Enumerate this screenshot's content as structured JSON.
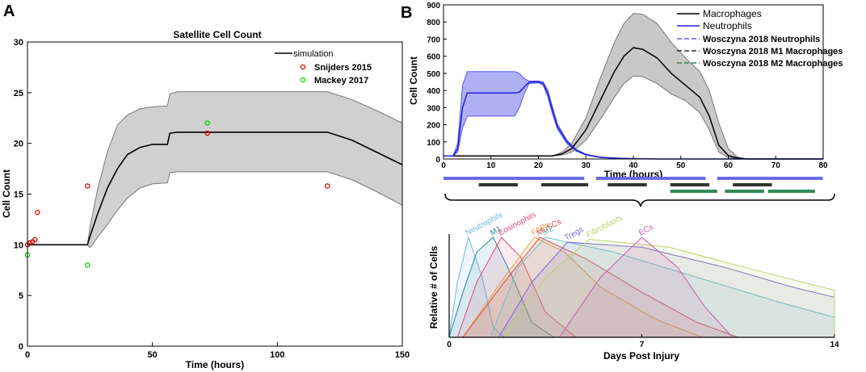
{
  "figure": {
    "panel_a_letter": "A",
    "panel_b_letter": "B"
  },
  "chart_data": [
    {
      "id": "A",
      "type": "line",
      "title": "Satellite Cell Count",
      "xlabel": "Time (hours)",
      "ylabel": "Cell Count",
      "xlim": [
        0,
        150
      ],
      "ylim": [
        0,
        30
      ],
      "xticks": [
        0,
        50,
        100,
        150
      ],
      "yticks": [
        0,
        5,
        10,
        15,
        20,
        25,
        30
      ],
      "series": [
        {
          "name": "simulation",
          "type": "line",
          "color": "#000000",
          "x": [
            0,
            24,
            25,
            28,
            32,
            36,
            40,
            45,
            50,
            56,
            57,
            60,
            70,
            80,
            100,
            120,
            130,
            140,
            150
          ],
          "y": [
            10,
            10,
            10.8,
            13,
            15.6,
            17.5,
            18.9,
            19.6,
            19.9,
            19.9,
            21.0,
            21.1,
            21.1,
            21.1,
            21.1,
            21.1,
            20.3,
            19.1,
            17.9
          ]
        },
        {
          "name": "band_upper",
          "type": "band_upper",
          "x": [
            0,
            24,
            25,
            28,
            32,
            36,
            40,
            45,
            50,
            56,
            57,
            60,
            70,
            80,
            100,
            120,
            130,
            140,
            150
          ],
          "y": [
            10,
            10,
            11.7,
            15.4,
            19.2,
            21.8,
            22.8,
            23.4,
            23.6,
            23.7,
            24.9,
            25.1,
            25.1,
            25.1,
            25.1,
            25.1,
            24.3,
            23.2,
            22.0
          ]
        },
        {
          "name": "band_lower",
          "type": "band_lower",
          "x": [
            0,
            24,
            25,
            28,
            32,
            36,
            40,
            45,
            50,
            56,
            57,
            60,
            70,
            80,
            100,
            120,
            130,
            140,
            150
          ],
          "y": [
            10,
            10,
            9.7,
            10.7,
            12.0,
            13.4,
            14.6,
            15.6,
            16.0,
            16.1,
            17.1,
            17.2,
            17.2,
            17.2,
            17.2,
            17.2,
            16.4,
            15.2,
            13.9
          ]
        },
        {
          "name": "Snijders 2015",
          "type": "scatter",
          "color": "#e00000",
          "x": [
            0,
            1,
            2,
            4,
            3,
            24,
            72,
            120
          ],
          "y": [
            10.0,
            10.2,
            10.3,
            13.2,
            10.5,
            15.8,
            21.0,
            15.8
          ]
        },
        {
          "name": "Mackey 2017",
          "type": "scatter",
          "color": "#00d000",
          "x": [
            0,
            24,
            72
          ],
          "y": [
            9.0,
            8.0,
            22.0
          ]
        }
      ],
      "legend": [
        "simulation",
        "Snijders 2015",
        "Mackey 2017"
      ]
    },
    {
      "id": "B-top",
      "type": "line",
      "xlabel": "Time (hours)",
      "ylabel": "Cell Count",
      "xlim": [
        0,
        80
      ],
      "ylim": [
        0,
        900
      ],
      "xticks": [
        0,
        10,
        20,
        30,
        40,
        50,
        60,
        70,
        80
      ],
      "yticks": [
        0,
        100,
        200,
        300,
        400,
        500,
        600,
        700,
        800,
        900
      ],
      "series": [
        {
          "name": "Macrophages",
          "color": "#000000",
          "x": [
            0,
            23,
            25,
            27,
            30,
            33,
            36,
            38,
            40,
            42,
            45,
            48,
            51,
            54,
            56,
            58,
            60,
            62,
            64,
            80
          ],
          "y": [
            18,
            18,
            30,
            60,
            170,
            340,
            510,
            600,
            650,
            640,
            590,
            500,
            430,
            360,
            250,
            80,
            20,
            5,
            0,
            0
          ]
        },
        {
          "name": "Macrophages_upper",
          "type": "band_upper",
          "x": [
            0,
            23,
            25,
            27,
            30,
            33,
            36,
            38,
            40,
            42,
            45,
            48,
            51,
            54,
            56,
            58,
            60,
            62,
            64,
            80
          ],
          "y": [
            18,
            18,
            40,
            90,
            240,
            470,
            680,
            790,
            850,
            845,
            790,
            680,
            590,
            510,
            400,
            210,
            60,
            10,
            0,
            0
          ]
        },
        {
          "name": "Macrophages_lower",
          "type": "band_lower",
          "x": [
            0,
            23,
            25,
            27,
            30,
            33,
            36,
            38,
            40,
            42,
            45,
            48,
            51,
            54,
            56,
            58,
            60,
            62,
            64,
            80
          ],
          "y": [
            18,
            18,
            22,
            40,
            110,
            230,
            360,
            440,
            485,
            480,
            440,
            380,
            340,
            270,
            170,
            40,
            10,
            2,
            0,
            0
          ]
        },
        {
          "name": "Neutrophils",
          "color": "#2020e0",
          "x": [
            0,
            2,
            3,
            4,
            5,
            6,
            10,
            15,
            16,
            17,
            18,
            20,
            21,
            22,
            23,
            24,
            26,
            28,
            30,
            33,
            36,
            40,
            45,
            80
          ],
          "y": [
            18,
            18,
            60,
            300,
            385,
            385,
            385,
            385,
            390,
            420,
            448,
            450,
            440,
            380,
            280,
            190,
            100,
            50,
            25,
            10,
            5,
            2,
            0,
            0
          ]
        },
        {
          "name": "Neutrophils_upper",
          "type": "band_upper",
          "x": [
            0,
            2,
            3,
            4,
            5,
            6,
            10,
            15,
            16,
            17,
            18,
            20,
            21,
            22,
            23,
            24,
            26,
            28,
            30,
            33,
            36,
            40,
            45,
            80
          ],
          "y": [
            18,
            18,
            90,
            430,
            510,
            510,
            510,
            510,
            500,
            470,
            455,
            455,
            450,
            400,
            300,
            205,
            110,
            55,
            28,
            12,
            6,
            2,
            0,
            0
          ]
        },
        {
          "name": "Neutrophils_lower",
          "type": "band_lower",
          "x": [
            0,
            2,
            3,
            4,
            5,
            6,
            10,
            15,
            16,
            17,
            18,
            20,
            21,
            22,
            23,
            24,
            26,
            28,
            30,
            33,
            36,
            40,
            45,
            80
          ],
          "y": [
            18,
            18,
            40,
            180,
            250,
            250,
            250,
            250,
            300,
            380,
            440,
            445,
            430,
            360,
            260,
            175,
            90,
            45,
            22,
            8,
            4,
            1,
            0,
            0
          ]
        }
      ],
      "legend": [
        {
          "label": "Macrophages",
          "color": "#000000",
          "style": "solid"
        },
        {
          "label": "Neutrophils",
          "color": "#2020e0",
          "style": "solid"
        },
        {
          "label": "Wosczyna 2018 Neutrophils",
          "color": "#5a5ae8",
          "style": "dashed"
        },
        {
          "label": "Wosczyna 2018 M1 Macrophages",
          "color": "#333333",
          "style": "dashed"
        },
        {
          "label": "Wosczyna 2018 M2 Macrophages",
          "color": "#2e8b57",
          "style": "dashed"
        }
      ]
    },
    {
      "id": "B-bottom",
      "type": "area",
      "xlabel": "Days Post Injury",
      "ylabel": "Relative # of Cells",
      "xlim": [
        0,
        14
      ],
      "xticks": [
        0,
        7,
        14
      ],
      "series": [
        {
          "name": "Neutrophils",
          "color": "#6fb7d9",
          "x": [
            0,
            0.3,
            0.7,
            1.2,
            1.6,
            2.0
          ],
          "y": [
            0,
            0.55,
            1.0,
            0.6,
            0.1,
            0
          ]
        },
        {
          "name": "M1",
          "color": "#2a8a9a",
          "x": [
            0,
            0.5,
            1.0,
            1.6,
            2.3,
            3.0,
            3.8
          ],
          "y": [
            0,
            0.45,
            0.85,
            1.0,
            0.6,
            0.15,
            0
          ]
        },
        {
          "name": "Eosinophils",
          "color": "#e24a7a",
          "x": [
            0.3,
            1.0,
            1.9,
            2.6,
            3.5,
            4.6
          ],
          "y": [
            0,
            0.55,
            1.0,
            0.8,
            0.25,
            0
          ]
        },
        {
          "name": "FAPs",
          "color": "#e6a23c",
          "x": [
            0.5,
            2.0,
            3.1,
            4.2,
            5.5,
            7.5,
            9.2
          ],
          "y": [
            0,
            0.6,
            1.0,
            0.85,
            0.5,
            0.18,
            0
          ]
        },
        {
          "name": "MuSCs",
          "color": "#d94a4a",
          "x": [
            0.5,
            2.0,
            3.3,
            5.0,
            7.0,
            9.0,
            10.5
          ],
          "y": [
            0,
            0.55,
            1.0,
            0.78,
            0.45,
            0.15,
            0
          ]
        },
        {
          "name": "M2",
          "color": "#6fc1c9",
          "x": [
            1.5,
            2.5,
            3.5,
            6.0,
            9.0,
            12.0,
            14.0
          ],
          "y": [
            0,
            0.7,
            1.0,
            0.85,
            0.6,
            0.35,
            0.2
          ]
        },
        {
          "name": "Tregs",
          "color": "#7b68c9",
          "x": [
            1.8,
            3.0,
            4.3,
            7.0,
            10.0,
            12.5,
            14.0
          ],
          "y": [
            0,
            0.55,
            0.95,
            0.9,
            0.7,
            0.5,
            0.4
          ]
        },
        {
          "name": "Fibroblasts",
          "color": "#b9d36a",
          "x": [
            2.0,
            3.5,
            5.1,
            8.0,
            11.0,
            14.0
          ],
          "y": [
            0,
            0.6,
            0.98,
            0.9,
            0.68,
            0.47
          ]
        },
        {
          "name": "ECs",
          "color": "#c65aa8",
          "x": [
            4.0,
            5.5,
            7.0,
            8.3,
            9.3,
            10.3
          ],
          "y": [
            0,
            0.6,
            1.0,
            0.7,
            0.3,
            0
          ]
        }
      ],
      "bars": [
        {
          "name": "Wosczyna 2018 Neutrophils",
          "color": "#6a6ae8",
          "segments": [
            [
              0,
              0.36
            ],
            [
              0.39,
              0.67
            ],
            [
              0.7,
              0.97
            ]
          ]
        },
        {
          "name": "Wosczyna 2018 M1 Macrophages",
          "color": "#333333",
          "segments": [
            [
              0.09,
              0.19
            ],
            [
              0.25,
              0.37
            ],
            [
              0.42,
              0.52
            ],
            [
              0.58,
              0.68
            ],
            [
              0.74,
              0.84
            ]
          ]
        },
        {
          "name": "Wosczyna 2018 M2 Macrophages",
          "color": "#2e8b57",
          "segments": [
            [
              0.83,
              0.95
            ]
          ]
        }
      ]
    }
  ]
}
